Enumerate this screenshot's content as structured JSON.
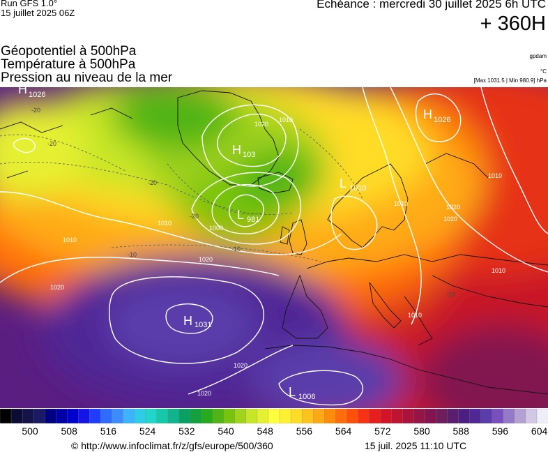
{
  "header": {
    "run_label": "Run GFS 1.0°",
    "run_date": "15 juillet 2025 06Z",
    "echeance": "Echéance : mercredi 30 juillet 2025 6h UTC",
    "lead_time": "+ 360H"
  },
  "parameters": [
    "Géopotentiel à 500hPa",
    "Température à 500hPa",
    "Pression au niveau de la mer"
  ],
  "units": {
    "geopotential": "gpdam",
    "temperature": "°C",
    "pressure_range": "[Max 1031.5 | Min 980.9] hPa"
  },
  "map": {
    "pressure_centers": [
      {
        "type": "H",
        "value": "1026"
      },
      {
        "type": "H",
        "value": "103"
      },
      {
        "type": "L",
        "value": "981"
      },
      {
        "type": "L",
        "value": "1010"
      },
      {
        "type": "H",
        "value": "1026"
      },
      {
        "type": "H",
        "value": "1031"
      },
      {
        "type": "L",
        "value": "1006"
      }
    ],
    "isobar_labels": [
      "1020",
      "1010",
      "1010",
      "1010",
      "1020",
      "1000",
      "1010",
      "1020",
      "1010",
      "1020",
      "1020",
      "1010",
      "1010",
      "1020",
      "1020"
    ],
    "temperature_labels": [
      "-20",
      "-20",
      "-20",
      "-20",
      "-10",
      "-10",
      "-10"
    ]
  },
  "colorbar": {
    "colors": [
      "#000000",
      "#0b0b33",
      "#14144a",
      "#1a1a66",
      "#000080",
      "#0000a8",
      "#0000cd",
      "#1414e6",
      "#1f3dff",
      "#2e6bff",
      "#3d8cff",
      "#3db2ff",
      "#2ecce6",
      "#1fd6c8",
      "#14c8a8",
      "#0fb48c",
      "#0aa064",
      "#14a03c",
      "#28aa1e",
      "#50b414",
      "#78c30f",
      "#a0d21e",
      "#c8e628",
      "#e6f032",
      "#ffff3c",
      "#fff032",
      "#ffdc28",
      "#ffc31e",
      "#ffaa14",
      "#ff8c0a",
      "#ff6e0a",
      "#ff500a",
      "#f53214",
      "#e61e1e",
      "#d21428",
      "#be1432",
      "#aa143c",
      "#961446",
      "#821450",
      "#6e1e5a",
      "#5a1e6e",
      "#4b1e82",
      "#502896",
      "#5a3caa",
      "#7850be",
      "#9678c8",
      "#b4a0d2",
      "#d2c8e6",
      "#eeeef8"
    ],
    "tick_labels": [
      "500",
      "508",
      "516",
      "524",
      "532",
      "540",
      "548",
      "556",
      "564",
      "572",
      "580",
      "588",
      "596",
      "604"
    ]
  },
  "footer": {
    "url": "© http://www.infoclimat.fr/z/gfs/europe/500/360",
    "timestamp": "15 juil. 2025 11:10 UTC"
  }
}
